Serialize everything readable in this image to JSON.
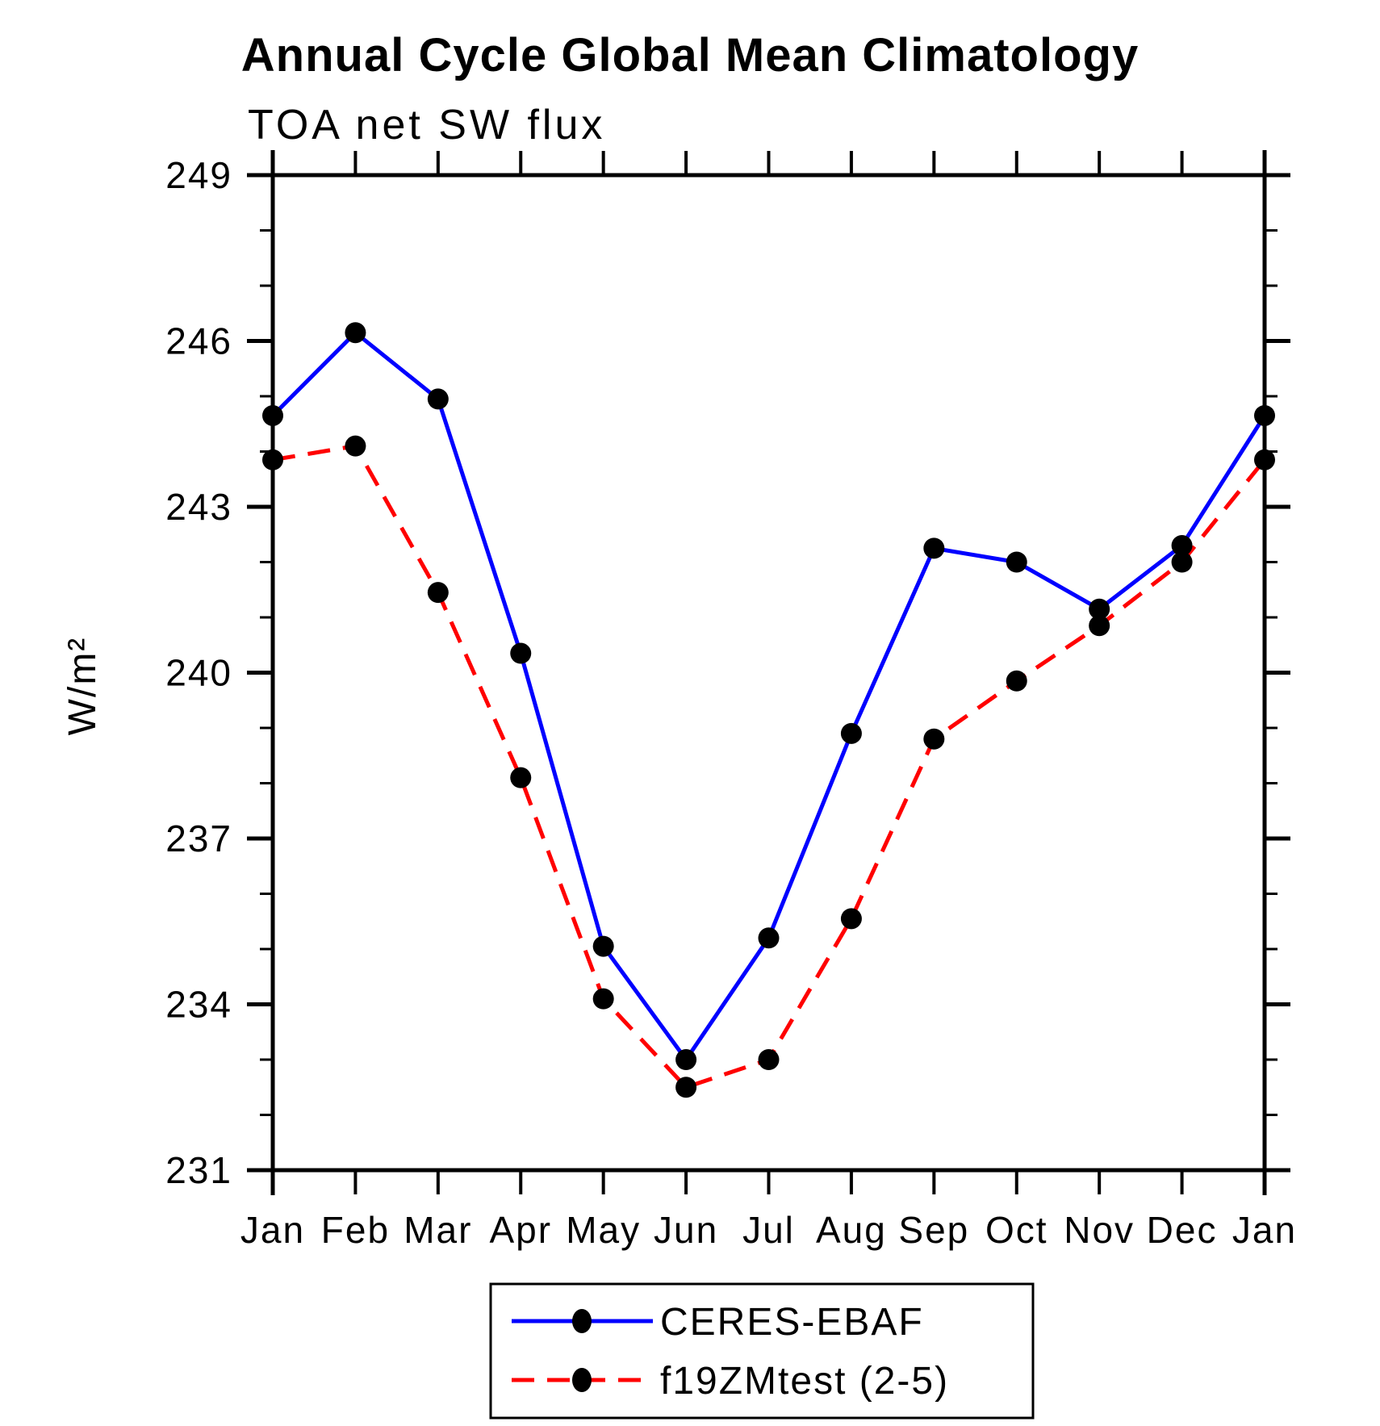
{
  "page": {
    "background": "#ffffff",
    "text_color": "#000000"
  },
  "chart_data": {
    "type": "line",
    "title": "Annual Cycle Global Mean Climatology",
    "subtitle": "TOA net SW flux",
    "xlabel": "",
    "ylabel": "W/m²",
    "categories": [
      "Jan",
      "Feb",
      "Mar",
      "Apr",
      "May",
      "Jun",
      "Jul",
      "Aug",
      "Sep",
      "Oct",
      "Nov",
      "Dec",
      "Jan"
    ],
    "series": [
      {
        "name": "CERES-EBAF",
        "color": "#0000ff",
        "line_style": "solid",
        "marker": "filled-circle",
        "marker_color": "#000000",
        "values": [
          244.65,
          246.15,
          244.95,
          240.35,
          235.05,
          233.0,
          235.2,
          238.9,
          242.25,
          242.0,
          241.15,
          242.3,
          244.65
        ]
      },
      {
        "name": "f19ZMtest (2-5)",
        "color": "#ff0000",
        "line_style": "dashed",
        "marker": "filled-circle",
        "marker_color": "#000000",
        "values": [
          243.85,
          244.1,
          241.45,
          238.1,
          234.1,
          232.5,
          233.0,
          235.55,
          238.8,
          239.85,
          240.85,
          242.0,
          243.85
        ]
      }
    ],
    "ylim": [
      231,
      249
    ],
    "yticks": [
      231,
      234,
      237,
      240,
      243,
      246,
      249
    ],
    "y_minor_tick_step": 1,
    "grid": false,
    "legend_position": "bottom-center",
    "axis_color": "#000000"
  }
}
